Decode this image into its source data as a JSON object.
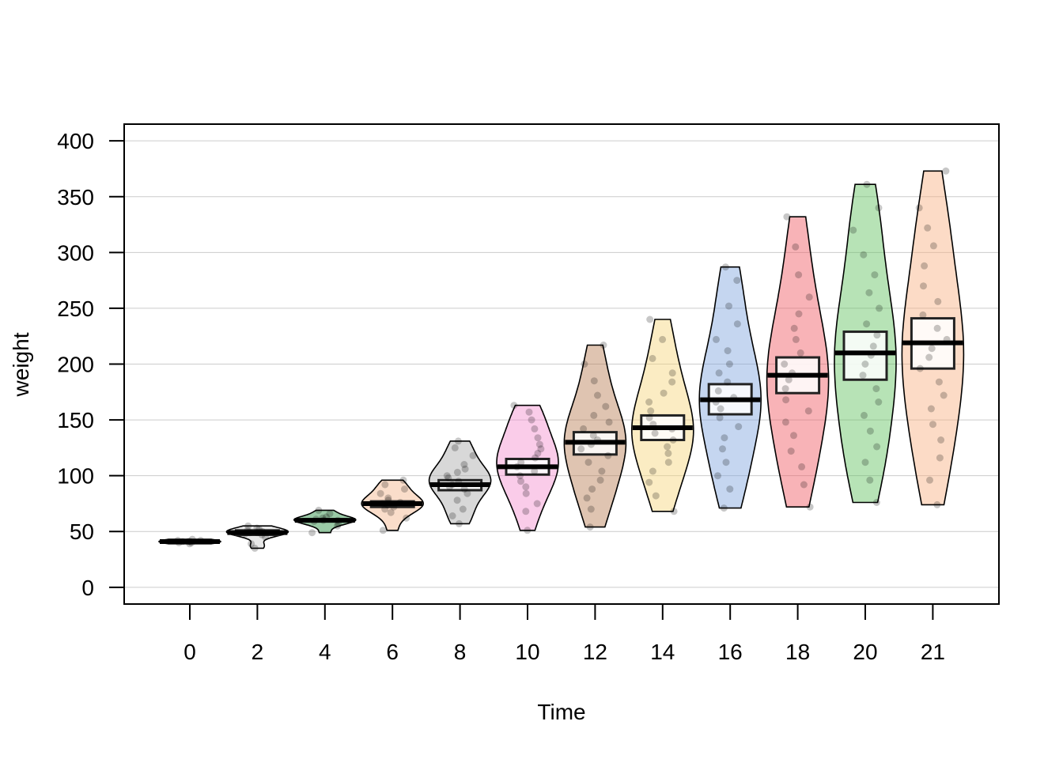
{
  "chart_data": {
    "type": "pirate",
    "xlabel": "Time",
    "ylabel": "weight",
    "ylim": [
      -15,
      415
    ],
    "yticks": [
      0,
      50,
      100,
      150,
      200,
      250,
      300,
      350,
      400
    ],
    "grid": true,
    "groups": [
      {
        "label": "0",
        "color": "#dcdcdc",
        "mean": 41,
        "lower": 40,
        "upper": 42,
        "min": 39,
        "max": 43,
        "points": [
          39,
          40,
          40,
          41,
          41,
          41,
          42,
          42,
          43
        ]
      },
      {
        "label": "2",
        "color": "#cfcfcf",
        "mean": 49,
        "lower": 47,
        "upper": 51,
        "min": 35,
        "max": 55,
        "points": [
          35,
          39,
          45,
          47,
          48,
          49,
          49,
          50,
          51,
          52,
          53,
          55
        ]
      },
      {
        "label": "4",
        "color": "#1f8a3a",
        "mean": 60,
        "lower": 59,
        "upper": 61,
        "min": 49,
        "max": 69,
        "points": [
          49,
          55,
          57,
          59,
          60,
          60,
          61,
          62,
          63,
          66,
          69
        ]
      },
      {
        "label": "6",
        "color": "#f5b48a",
        "mean": 75,
        "lower": 72,
        "upper": 77,
        "min": 51,
        "max": 96,
        "points": [
          51,
          62,
          67,
          70,
          72,
          74,
          75,
          76,
          78,
          80,
          84,
          88,
          92,
          96
        ]
      },
      {
        "label": "8",
        "color": "#a8a8a8",
        "mean": 92,
        "lower": 87,
        "upper": 96,
        "min": 57,
        "max": 131,
        "points": [
          57,
          64,
          70,
          78,
          84,
          88,
          90,
          92,
          95,
          98,
          100,
          103,
          106,
          110,
          118,
          125,
          131
        ]
      },
      {
        "label": "10",
        "color": "#f58fce",
        "mean": 108,
        "lower": 101,
        "upper": 115,
        "min": 51,
        "max": 163,
        "points": [
          51,
          68,
          75,
          84,
          90,
          95,
          100,
          104,
          108,
          112,
          116,
          120,
          124,
          128,
          134,
          142,
          150,
          157,
          163
        ]
      },
      {
        "label": "12",
        "color": "#b97c52",
        "mean": 130,
        "lower": 119,
        "upper": 139,
        "min": 54,
        "max": 217,
        "points": [
          54,
          70,
          80,
          88,
          96,
          104,
          112,
          118,
          124,
          128,
          132,
          136,
          142,
          148,
          154,
          162,
          172,
          185,
          200,
          217
        ]
      },
      {
        "label": "14",
        "color": "#f7d57a",
        "mean": 143,
        "lower": 132,
        "upper": 154,
        "min": 68,
        "max": 240,
        "points": [
          68,
          82,
          94,
          104,
          112,
          120,
          126,
          132,
          138,
          142,
          146,
          152,
          158,
          166,
          174,
          184,
          192,
          205,
          222,
          240
        ]
      },
      {
        "label": "16",
        "color": "#7fa4dd",
        "mean": 168,
        "lower": 155,
        "upper": 182,
        "min": 71,
        "max": 287,
        "points": [
          71,
          88,
          100,
          112,
          124,
          134,
          144,
          152,
          160,
          166,
          170,
          176,
          184,
          192,
          200,
          212,
          222,
          236,
          252,
          275,
          287
        ]
      },
      {
        "label": "18",
        "color": "#f05660",
        "mean": 190,
        "lower": 174,
        "upper": 206,
        "min": 72,
        "max": 332,
        "points": [
          72,
          92,
          108,
          122,
          136,
          148,
          158,
          168,
          178,
          186,
          192,
          200,
          210,
          222,
          232,
          245,
          260,
          280,
          305,
          332
        ]
      },
      {
        "label": "20",
        "color": "#5fc25e",
        "mean": 210,
        "lower": 186,
        "upper": 229,
        "min": 76,
        "max": 361,
        "points": [
          76,
          96,
          112,
          126,
          140,
          154,
          166,
          178,
          190,
          200,
          208,
          216,
          226,
          236,
          250,
          264,
          280,
          298,
          320,
          340,
          361
        ]
      },
      {
        "label": "21",
        "color": "#f8b080",
        "mean": 219,
        "lower": 196,
        "upper": 241,
        "min": 74,
        "max": 373,
        "points": [
          74,
          96,
          116,
          132,
          146,
          160,
          172,
          184,
          196,
          206,
          214,
          222,
          232,
          244,
          256,
          270,
          288,
          306,
          322,
          340,
          373
        ]
      }
    ]
  }
}
